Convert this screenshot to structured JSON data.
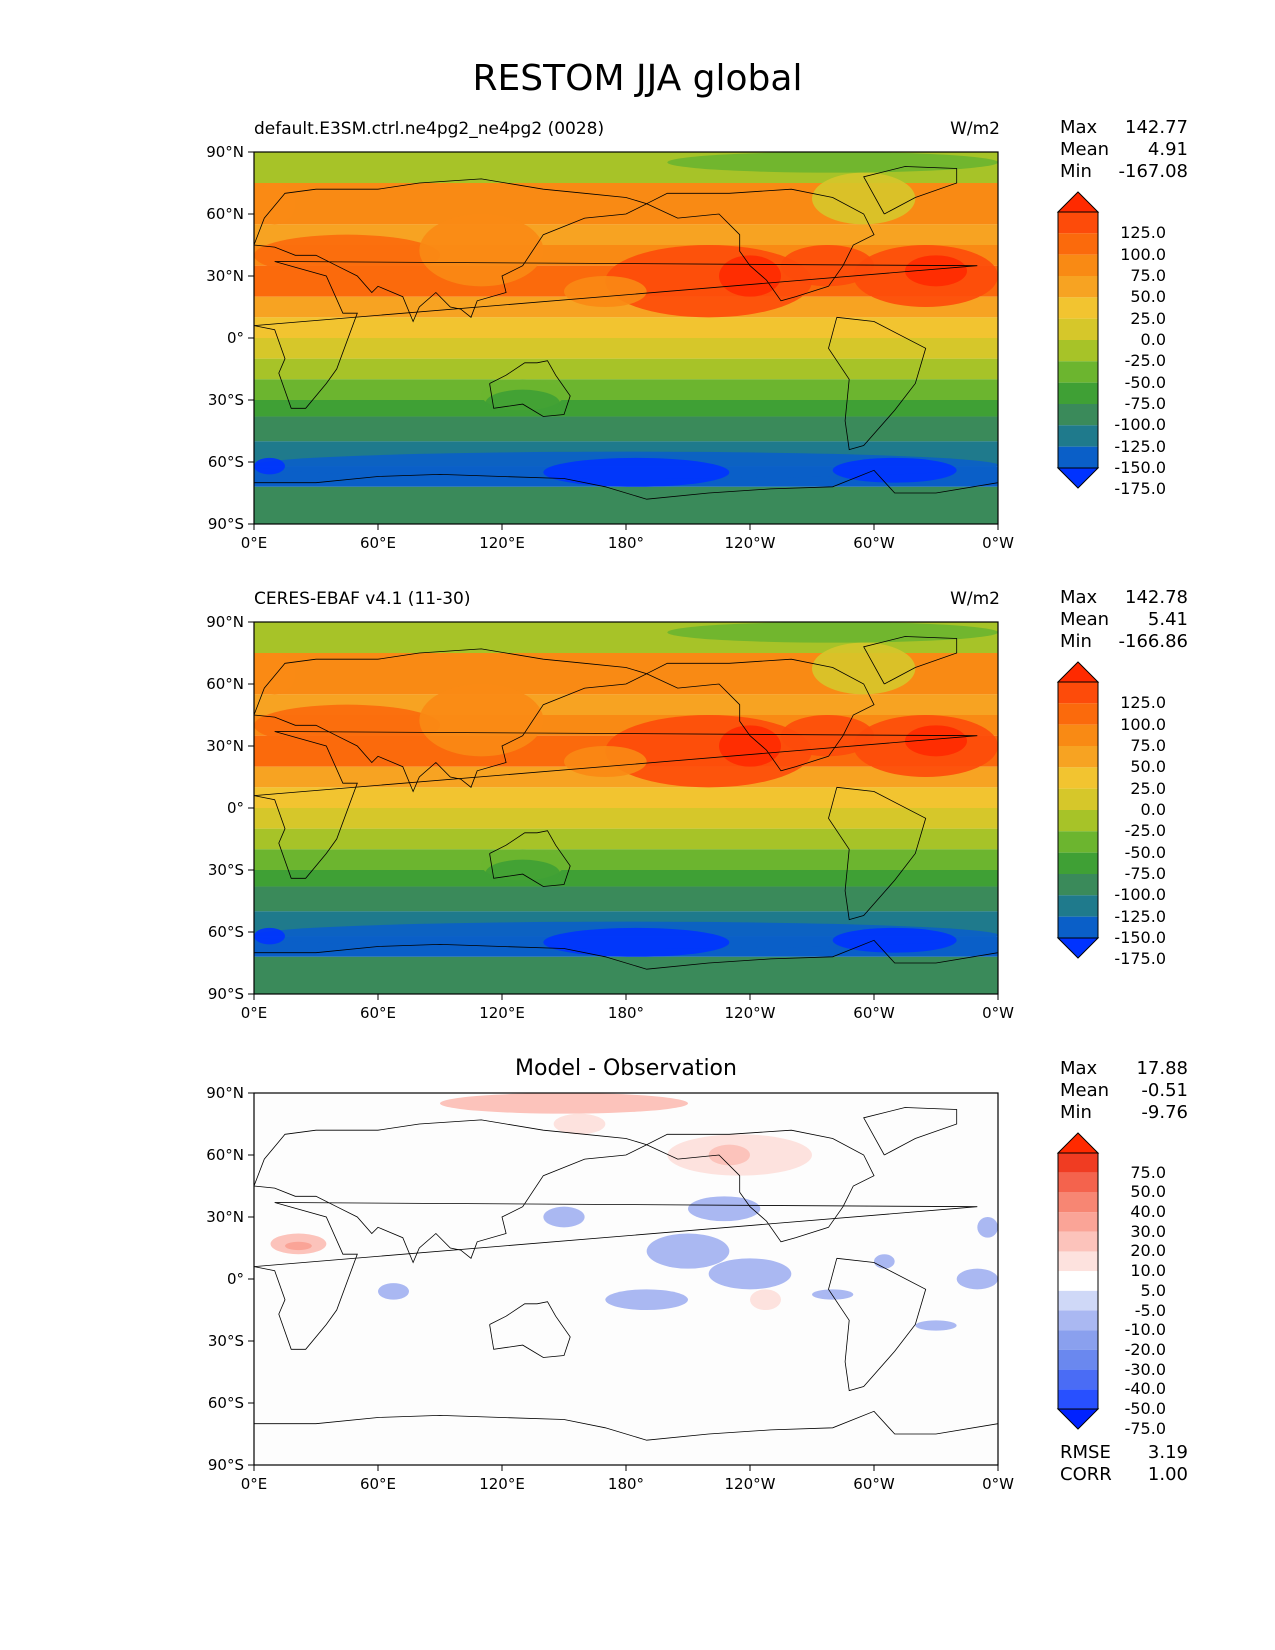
{
  "title": "RESTOM JJA global",
  "lon_ticks": [
    "0°E",
    "60°E",
    "120°E",
    "180°",
    "120°W",
    "60°W",
    "0°W"
  ],
  "lat_ticks": [
    "90°N",
    "60°N",
    "30°N",
    "0°",
    "30°S",
    "60°S",
    "90°S"
  ],
  "panels": [
    {
      "title_left": "default.E3SM.ctrl.ne4pg2_ne4pg2 (0028)",
      "title_right": "W/m2",
      "title_center": "",
      "stats": {
        "max_label": "Max",
        "max": "142.77",
        "mean_label": "Mean",
        "mean": "4.91",
        "min_label": "Min",
        "min": "-167.08"
      },
      "colorbar_labels": [
        "125.0",
        "100.0",
        "75.0",
        "50.0",
        "25.0",
        "0.0",
        "-25.0",
        "-50.0",
        "-75.0",
        "-100.0",
        "-125.0",
        "-150.0",
        "-175.0"
      ]
    },
    {
      "title_left": "CERES-EBAF v4.1 (11-30)",
      "title_right": "W/m2",
      "title_center": "",
      "stats": {
        "max_label": "Max",
        "max": "142.78",
        "mean_label": "Mean",
        "mean": "5.41",
        "min_label": "Min",
        "min": "-166.86"
      },
      "colorbar_labels": [
        "125.0",
        "100.0",
        "75.0",
        "50.0",
        "25.0",
        "0.0",
        "-25.0",
        "-50.0",
        "-75.0",
        "-100.0",
        "-125.0",
        "-150.0",
        "-175.0"
      ]
    },
    {
      "title_left": "",
      "title_right": "",
      "title_center": "Model - Observation",
      "stats": {
        "max_label": "Max",
        "max": "17.88",
        "mean_label": "Mean",
        "mean": "-0.51",
        "min_label": "Min",
        "min": "-9.76"
      },
      "colorbar_labels": [
        "75.0",
        "50.0",
        "40.0",
        "30.0",
        "20.0",
        "10.0",
        "5.0",
        "-5.0",
        "-10.0",
        "-20.0",
        "-30.0",
        "-40.0",
        "-50.0",
        "-75.0"
      ]
    }
  ],
  "error_stats": {
    "rmse_label": "RMSE",
    "rmse": "3.19",
    "corr_label": "CORR",
    "corr": "1.00"
  },
  "colors": {
    "restom_scale": [
      "#0033ff",
      "#0a5fc8",
      "#1f7a8c",
      "#3a8a5a",
      "#3fa035",
      "#6cb52f",
      "#a7c328",
      "#d6c72a",
      "#f2c430",
      "#f7a322",
      "#f98a14",
      "#fb6a0c",
      "#fd4b0a",
      "#ff2a00"
    ],
    "diff_scale": [
      "#0022ff",
      "#2850ff",
      "#4a6cf5",
      "#6a88ef",
      "#8aa0ee",
      "#aab8f2",
      "#cfd8f7",
      "#ffffff",
      "#fde2de",
      "#fcc3bb",
      "#faa497",
      "#f78673",
      "#f4634d",
      "#f03c22",
      "#ff2a00"
    ]
  }
}
